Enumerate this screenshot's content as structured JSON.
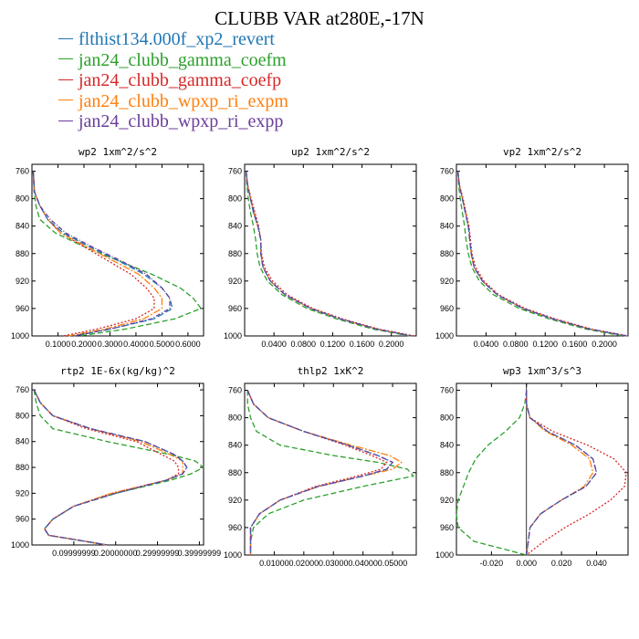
{
  "title": "CLUBB VAR at280E,-17N",
  "legend": [
    {
      "name": "flthist134.000f_xp2_revert",
      "color": "#1f77b4"
    },
    {
      "name": "jan24_clubb_gamma_coefm",
      "color": "#2ca02c"
    },
    {
      "name": "jan24_clubb_gamma_coefp",
      "color": "#d62728"
    },
    {
      "name": "jan24_clubb_wpxp_ri_expm",
      "color": "#ff7f0e"
    },
    {
      "name": "jan24_clubb_wpxp_ri_expp",
      "color": "#6a3d9a"
    }
  ],
  "chart_data": [
    {
      "type": "line",
      "title": "wp2  1xm^2/s^2",
      "xlim": [
        0,
        0.66
      ],
      "ylim": [
        1000,
        750
      ],
      "xticks": [
        "0.1000",
        "0.2000",
        "0.3000",
        "0.4000",
        "0.5000",
        "0.6000"
      ],
      "xtick_values": [
        0.1,
        0.2,
        0.3,
        0.4,
        0.5,
        0.6
      ],
      "yticks": [
        760,
        800,
        840,
        880,
        920,
        960,
        1000
      ],
      "y": [
        760,
        790,
        810,
        830,
        850,
        870,
        890,
        910,
        930,
        945,
        960,
        975,
        990,
        1000
      ],
      "series": [
        {
          "name": "flthist134.000f_xp2_revert",
          "x": [
            0.005,
            0.01,
            0.03,
            0.06,
            0.12,
            0.22,
            0.33,
            0.43,
            0.5,
            0.53,
            0.54,
            0.47,
            0.3,
            0.16
          ]
        },
        {
          "name": "jan24_clubb_gamma_coefm",
          "x": [
            0.005,
            0.008,
            0.015,
            0.03,
            0.09,
            0.2,
            0.33,
            0.46,
            0.57,
            0.62,
            0.65,
            0.55,
            0.36,
            0.18
          ]
        },
        {
          "name": "jan24_clubb_gamma_coefp",
          "x": [
            0.005,
            0.01,
            0.03,
            0.06,
            0.11,
            0.2,
            0.29,
            0.38,
            0.44,
            0.47,
            0.47,
            0.4,
            0.25,
            0.12
          ]
        },
        {
          "name": "jan24_clubb_wpxp_ri_expm",
          "x": [
            0.005,
            0.01,
            0.03,
            0.06,
            0.11,
            0.21,
            0.31,
            0.41,
            0.47,
            0.5,
            0.5,
            0.43,
            0.28,
            0.14
          ]
        },
        {
          "name": "jan24_clubb_wpxp_ri_expp",
          "x": [
            0.005,
            0.01,
            0.03,
            0.07,
            0.13,
            0.23,
            0.34,
            0.44,
            0.5,
            0.53,
            0.53,
            0.46,
            0.3,
            0.16
          ]
        }
      ]
    },
    {
      "type": "line",
      "title": "up2  1xm^2/s^2",
      "xlim": [
        0,
        0.234
      ],
      "ylim": [
        1000,
        750
      ],
      "xticks": [
        "0.0400",
        "0.0800",
        "0.1200",
        "0.1600",
        "0.2000"
      ],
      "xtick_values": [
        0.04,
        0.08,
        0.12,
        0.16,
        0.2
      ],
      "yticks": [
        760,
        800,
        840,
        880,
        920,
        960,
        1000
      ],
      "y": [
        760,
        780,
        800,
        820,
        840,
        860,
        880,
        900,
        920,
        940,
        960,
        975,
        990,
        1000
      ],
      "series": [
        {
          "name": "flthist134.000f_xp2_revert",
          "x": [
            0.002,
            0.004,
            0.008,
            0.012,
            0.018,
            0.022,
            0.022,
            0.025,
            0.035,
            0.055,
            0.09,
            0.13,
            0.18,
            0.228
          ]
        },
        {
          "name": "jan24_clubb_gamma_coefm",
          "x": [
            0.002,
            0.003,
            0.005,
            0.008,
            0.012,
            0.015,
            0.017,
            0.021,
            0.031,
            0.051,
            0.085,
            0.125,
            0.175,
            0.225
          ]
        },
        {
          "name": "jan24_clubb_gamma_coefp",
          "x": [
            0.002,
            0.004,
            0.009,
            0.014,
            0.019,
            0.022,
            0.023,
            0.027,
            0.038,
            0.058,
            0.093,
            0.133,
            0.183,
            0.232
          ]
        },
        {
          "name": "jan24_clubb_wpxp_ri_expm",
          "x": [
            0.002,
            0.004,
            0.008,
            0.012,
            0.018,
            0.022,
            0.022,
            0.025,
            0.035,
            0.055,
            0.09,
            0.13,
            0.18,
            0.228
          ]
        },
        {
          "name": "jan24_clubb_wpxp_ri_expp",
          "x": [
            0.002,
            0.004,
            0.008,
            0.013,
            0.018,
            0.022,
            0.022,
            0.025,
            0.035,
            0.055,
            0.09,
            0.13,
            0.18,
            0.228
          ]
        }
      ]
    },
    {
      "type": "line",
      "title": "vp2  1xm^2/s^2",
      "xlim": [
        0,
        0.232
      ],
      "ylim": [
        1000,
        750
      ],
      "xticks": [
        "0.0400",
        "0.0800",
        "0.1200",
        "0.1600",
        "0.2000"
      ],
      "xtick_values": [
        0.04,
        0.08,
        0.12,
        0.16,
        0.2
      ],
      "yticks": [
        760,
        800,
        840,
        880,
        920,
        960,
        1000
      ],
      "y": [
        760,
        780,
        800,
        820,
        840,
        860,
        880,
        900,
        920,
        940,
        960,
        975,
        990,
        1000
      ],
      "series": [
        {
          "name": "flthist134.000f_xp2_revert",
          "x": [
            0.002,
            0.004,
            0.008,
            0.012,
            0.016,
            0.018,
            0.02,
            0.024,
            0.035,
            0.055,
            0.09,
            0.13,
            0.18,
            0.23
          ]
        },
        {
          "name": "jan24_clubb_gamma_coefm",
          "x": [
            0.002,
            0.003,
            0.005,
            0.008,
            0.011,
            0.013,
            0.016,
            0.021,
            0.031,
            0.05,
            0.085,
            0.125,
            0.175,
            0.225
          ]
        },
        {
          "name": "jan24_clubb_gamma_coefp",
          "x": [
            0.002,
            0.004,
            0.009,
            0.013,
            0.017,
            0.019,
            0.021,
            0.026,
            0.037,
            0.057,
            0.093,
            0.133,
            0.183,
            0.232
          ]
        },
        {
          "name": "jan24_clubb_wpxp_ri_expm",
          "x": [
            0.002,
            0.004,
            0.008,
            0.012,
            0.016,
            0.018,
            0.02,
            0.024,
            0.035,
            0.055,
            0.09,
            0.13,
            0.18,
            0.23
          ]
        },
        {
          "name": "jan24_clubb_wpxp_ri_expp",
          "x": [
            0.002,
            0.004,
            0.008,
            0.012,
            0.016,
            0.018,
            0.02,
            0.024,
            0.035,
            0.055,
            0.09,
            0.13,
            0.18,
            0.23
          ]
        }
      ]
    },
    {
      "type": "line",
      "title": "rtp2  1E-6x(kg/kg)^2",
      "xlim": [
        0,
        0.41
      ],
      "ylim": [
        1000,
        750
      ],
      "xticks": [
        "0.09999999",
        "0.20000000",
        "0.29999999",
        "0.39999999"
      ],
      "xtick_values": [
        0.1,
        0.2,
        0.3,
        0.4
      ],
      "yticks": [
        760,
        800,
        840,
        880,
        920,
        960,
        1000
      ],
      "y": [
        760,
        780,
        800,
        820,
        840,
        860,
        870,
        880,
        890,
        900,
        920,
        940,
        960,
        975,
        985,
        1000
      ],
      "series": [
        {
          "name": "flthist134.000f_xp2_revert",
          "x": [
            0.005,
            0.02,
            0.05,
            0.14,
            0.27,
            0.34,
            0.36,
            0.37,
            0.36,
            0.32,
            0.2,
            0.1,
            0.05,
            0.03,
            0.04,
            0.18
          ]
        },
        {
          "name": "jan24_clubb_gamma_coefm",
          "x": [
            0.005,
            0.01,
            0.02,
            0.05,
            0.18,
            0.33,
            0.39,
            0.41,
            0.38,
            0.33,
            0.2,
            0.1,
            0.05,
            0.03,
            0.04,
            0.18
          ]
        },
        {
          "name": "jan24_clubb_gamma_coefp",
          "x": [
            0.005,
            0.02,
            0.05,
            0.13,
            0.25,
            0.31,
            0.34,
            0.35,
            0.35,
            0.32,
            0.19,
            0.1,
            0.05,
            0.03,
            0.04,
            0.18
          ]
        },
        {
          "name": "jan24_clubb_wpxp_ri_expm",
          "x": [
            0.005,
            0.02,
            0.05,
            0.14,
            0.26,
            0.33,
            0.36,
            0.36,
            0.36,
            0.32,
            0.19,
            0.1,
            0.05,
            0.03,
            0.04,
            0.18
          ]
        },
        {
          "name": "jan24_clubb_wpxp_ri_expp",
          "x": [
            0.005,
            0.02,
            0.05,
            0.14,
            0.27,
            0.34,
            0.36,
            0.37,
            0.36,
            0.32,
            0.2,
            0.1,
            0.05,
            0.03,
            0.04,
            0.18
          ]
        }
      ]
    },
    {
      "type": "line",
      "title": "thlp2  1xK^2",
      "xlim": [
        0,
        0.058
      ],
      "ylim": [
        1000,
        750
      ],
      "xticks": [
        "0.01000",
        "0.02000",
        "0.03000",
        "0.04000",
        "0.05000"
      ],
      "xtick_values": [
        0.01,
        0.02,
        0.03,
        0.04,
        0.05
      ],
      "yticks": [
        760,
        800,
        840,
        880,
        920,
        960,
        1000
      ],
      "y": [
        760,
        780,
        800,
        820,
        840,
        855,
        865,
        875,
        885,
        900,
        920,
        940,
        960,
        980,
        1000
      ],
      "series": [
        {
          "name": "flthist134.000f_xp2_revert",
          "x": [
            0.001,
            0.003,
            0.008,
            0.02,
            0.035,
            0.045,
            0.05,
            0.048,
            0.04,
            0.025,
            0.012,
            0.005,
            0.002,
            0.002,
            0.002
          ]
        },
        {
          "name": "jan24_clubb_gamma_coefm",
          "x": [
            0.001,
            0.001,
            0.002,
            0.004,
            0.012,
            0.03,
            0.045,
            0.055,
            0.057,
            0.04,
            0.02,
            0.008,
            0.003,
            0.002,
            0.002
          ]
        },
        {
          "name": "jan24_clubb_gamma_coefp",
          "x": [
            0.001,
            0.003,
            0.008,
            0.02,
            0.034,
            0.043,
            0.048,
            0.046,
            0.038,
            0.024,
            0.012,
            0.005,
            0.002,
            0.002,
            0.002
          ]
        },
        {
          "name": "jan24_clubb_wpxp_ri_expm",
          "x": [
            0.001,
            0.003,
            0.008,
            0.02,
            0.036,
            0.049,
            0.053,
            0.05,
            0.04,
            0.025,
            0.012,
            0.005,
            0.002,
            0.002,
            0.002
          ]
        },
        {
          "name": "jan24_clubb_wpxp_ri_expp",
          "x": [
            0.001,
            0.003,
            0.008,
            0.02,
            0.035,
            0.045,
            0.05,
            0.048,
            0.04,
            0.025,
            0.012,
            0.005,
            0.002,
            0.002,
            0.002
          ]
        }
      ]
    },
    {
      "type": "line",
      "title": "wp3  1xm^3/s^3",
      "xlim": [
        -0.04,
        0.058
      ],
      "ylim": [
        1000,
        750
      ],
      "xticks": [
        "-0.020",
        "0.000",
        "0.020",
        "0.040"
      ],
      "xtick_values": [
        -0.02,
        0,
        0.02,
        0.04
      ],
      "yticks": [
        760,
        800,
        840,
        880,
        920,
        960,
        1000
      ],
      "y": [
        760,
        780,
        800,
        820,
        840,
        860,
        880,
        900,
        920,
        940,
        960,
        980,
        1000
      ],
      "series": [
        {
          "name": "flthist134.000f_xp2_revert",
          "x": [
            0,
            0,
            0.002,
            0.012,
            0.028,
            0.038,
            0.04,
            0.034,
            0.02,
            0.008,
            0.002,
            0.001,
            0
          ]
        },
        {
          "name": "jan24_clubb_gamma_coefm",
          "x": [
            0,
            -0.001,
            -0.004,
            -0.012,
            -0.022,
            -0.029,
            -0.033,
            -0.036,
            -0.039,
            -0.04,
            -0.039,
            -0.03,
            0
          ]
        },
        {
          "name": "jan24_clubb_gamma_coefp",
          "x": [
            0,
            0,
            0.002,
            0.015,
            0.035,
            0.05,
            0.057,
            0.056,
            0.048,
            0.036,
            0.022,
            0.01,
            0
          ]
        },
        {
          "name": "jan24_clubb_wpxp_ri_expm",
          "x": [
            0,
            0,
            0.002,
            0.011,
            0.026,
            0.036,
            0.038,
            0.033,
            0.02,
            0.008,
            0.002,
            0.001,
            0
          ]
        },
        {
          "name": "jan24_clubb_wpxp_ri_expp",
          "x": [
            0,
            0,
            0.002,
            0.012,
            0.028,
            0.038,
            0.04,
            0.034,
            0.02,
            0.008,
            0.002,
            0.001,
            0
          ]
        }
      ]
    }
  ]
}
